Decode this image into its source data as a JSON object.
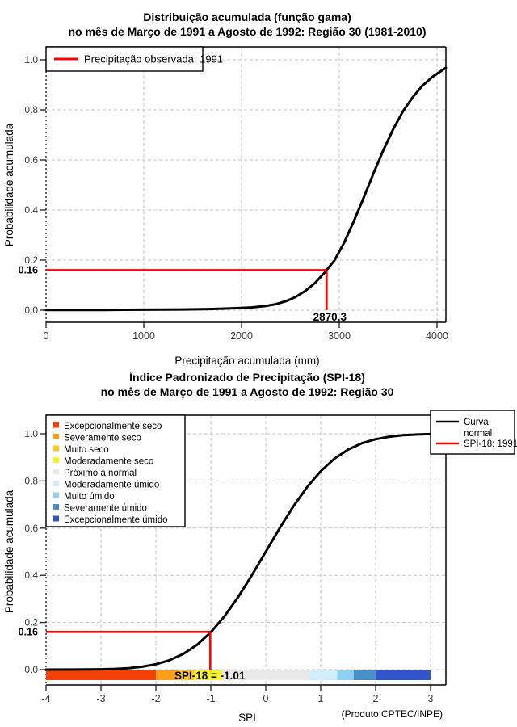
{
  "page": {
    "background": "#FFFFFF"
  },
  "colors": {
    "reference_red": "#FF0000",
    "curve_black": "#000000",
    "grid_gray": "#C6C6C6",
    "tick_label_gray": "#3A3A3A"
  },
  "chart_data": [
    {
      "type": "line",
      "title": "Distribuição acumulada (função gama)",
      "subtitle": "no mês de Março de 1991 a Agosto de 1992: Região 30 (1981-2010)",
      "xlabel": "Precipitação acumulada (mm)",
      "ylabel": "Probabilidade acumulada",
      "xlim": [
        0,
        4090
      ],
      "ylim": [
        -0.05,
        1.05
      ],
      "x_ticks": [
        0,
        1000,
        2000,
        3000,
        4000
      ],
      "x_tick_labels": [
        "0",
        "1000",
        "2000",
        "3000",
        "4000"
      ],
      "y_ticks": [
        0.0,
        0.2,
        0.4,
        0.6,
        0.8,
        1.0
      ],
      "y_tick_labels": [
        "0.0",
        "0.2",
        "0.4",
        "0.6",
        "0.8",
        "1.0"
      ],
      "grid": true,
      "legend": {
        "position": "top-left",
        "items": [
          {
            "label": "Precipitação observada: 1991",
            "color": "#FF0000",
            "type": "line"
          }
        ]
      },
      "series": [
        {
          "name": "gamma-cdf",
          "color": "#000000",
          "points": [
            [
              0,
              0.001
            ],
            [
              200,
              0.001
            ],
            [
              400,
              0.001
            ],
            [
              600,
              0.001
            ],
            [
              800,
              0.0015
            ],
            [
              1000,
              0.002
            ],
            [
              1200,
              0.0025
            ],
            [
              1400,
              0.003
            ],
            [
              1600,
              0.004
            ],
            [
              1800,
              0.006
            ],
            [
              1950,
              0.008
            ],
            [
              2100,
              0.011
            ],
            [
              2250,
              0.017
            ],
            [
              2350,
              0.024
            ],
            [
              2450,
              0.035
            ],
            [
              2550,
              0.052
            ],
            [
              2650,
              0.076
            ],
            [
              2750,
              0.108
            ],
            [
              2850,
              0.15
            ],
            [
              2870.3,
              0.16
            ],
            [
              2950,
              0.198
            ],
            [
              3050,
              0.27
            ],
            [
              3150,
              0.356
            ],
            [
              3250,
              0.45
            ],
            [
              3350,
              0.546
            ],
            [
              3450,
              0.638
            ],
            [
              3550,
              0.722
            ],
            [
              3650,
              0.793
            ],
            [
              3750,
              0.85
            ],
            [
              3850,
              0.896
            ],
            [
              3950,
              0.931
            ],
            [
              4050,
              0.957
            ],
            [
              4090,
              0.968
            ]
          ]
        }
      ],
      "annotations": {
        "hline": 0.16,
        "hline_label": "0.16",
        "vline": 2870.3,
        "vline_label": "2870.3",
        "color": "#FF0000"
      }
    },
    {
      "type": "line",
      "title": "Índice Padronizado de Precipitação (SPI-18)",
      "subtitle": "no mês de Março de 1991 a Agosto de 1992: Região 30",
      "xlabel": "SPI",
      "ylabel": "Probabilidade acumulada",
      "footer": "(Produto:CPTEC/INPE)",
      "xlim": [
        -4,
        3.28
      ],
      "ylim": [
        -0.065,
        1.08
      ],
      "x_ticks": [
        -4,
        -3,
        -2,
        -1,
        0,
        1,
        2,
        3
      ],
      "x_tick_labels": [
        "-4",
        "-3",
        "-2",
        "-1",
        "0",
        "1",
        "2",
        "3"
      ],
      "y_ticks": [
        0.0,
        0.2,
        0.4,
        0.6,
        0.8,
        1.0
      ],
      "y_tick_labels": [
        "0.0",
        "0.2",
        "0.4",
        "0.6",
        "0.8",
        "1.0"
      ],
      "grid": true,
      "categories": [
        {
          "label": "Excepcionalmente seco",
          "color": "#F5400A",
          "range": [
            -4,
            -2
          ]
        },
        {
          "label": "Severamente seco",
          "color": "#FF9E17",
          "range": [
            -2,
            -1.6
          ]
        },
        {
          "label": "Muito seco",
          "color": "#FFC61E",
          "range": [
            -1.6,
            -1.3
          ]
        },
        {
          "label": "Moderadamente seco",
          "color": "#FAF51D",
          "range": [
            -1.3,
            -0.8
          ]
        },
        {
          "label": "Próximo à normal",
          "color": "#E8E8E8",
          "range": [
            -0.8,
            0.8
          ]
        },
        {
          "label": "Moderadamente úmido",
          "color": "#CFEDFA",
          "range": [
            0.8,
            1.3
          ]
        },
        {
          "label": "Muito úmido",
          "color": "#8FD0F2",
          "range": [
            1.3,
            1.6
          ]
        },
        {
          "label": "Severamente úmido",
          "color": "#4A90C4",
          "range": [
            1.6,
            2
          ]
        },
        {
          "label": "Excepcionalmente úmido",
          "color": "#3355CC",
          "range": [
            2,
            3
          ]
        }
      ],
      "curve_legend": {
        "line1": "Curva",
        "line2": "normal",
        "spi": "SPI-18: 1991"
      },
      "series": [
        {
          "name": "normal-cdf",
          "color": "#000000",
          "points": [
            [
              -4,
              0.0
            ],
            [
              -3.5,
              0.0002
            ],
            [
              -3,
              0.0013
            ],
            [
              -2.75,
              0.003
            ],
            [
              -2.5,
              0.0062
            ],
            [
              -2.25,
              0.0122
            ],
            [
              -2,
              0.0228
            ],
            [
              -1.75,
              0.0401
            ],
            [
              -1.5,
              0.0668
            ],
            [
              -1.25,
              0.1056
            ],
            [
              -1,
              0.1587
            ],
            [
              -0.75,
              0.2266
            ],
            [
              -0.5,
              0.3085
            ],
            [
              -0.25,
              0.4013
            ],
            [
              0,
              0.5
            ],
            [
              0.25,
              0.5987
            ],
            [
              0.5,
              0.6915
            ],
            [
              0.75,
              0.7734
            ],
            [
              1,
              0.8413
            ],
            [
              1.25,
              0.8944
            ],
            [
              1.5,
              0.9332
            ],
            [
              1.75,
              0.9599
            ],
            [
              2,
              0.9772
            ],
            [
              2.25,
              0.9878
            ],
            [
              2.5,
              0.9938
            ],
            [
              2.75,
              0.997
            ],
            [
              3,
              0.9987
            ]
          ]
        }
      ],
      "annotations": {
        "hline": 0.16,
        "hline_label": "0.16",
        "vline": -1.01,
        "value_text": "SPI-18 = -1.01",
        "color": "#FF0000"
      }
    }
  ]
}
